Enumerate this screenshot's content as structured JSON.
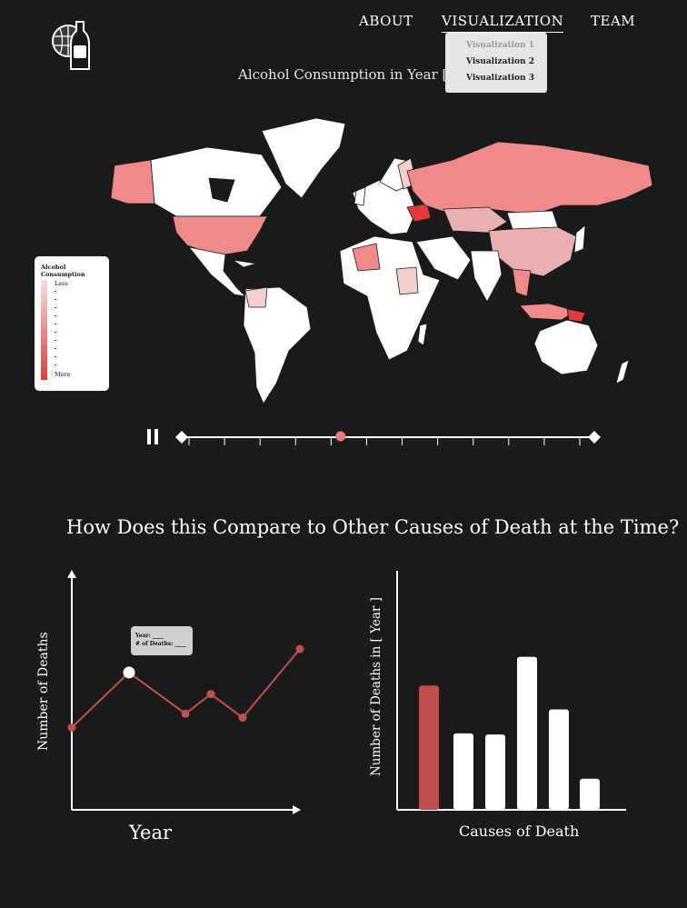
{
  "nav": {
    "about": "ABOUT",
    "visualization": "VISUALIZATION",
    "team": "TEAM",
    "dropdown": [
      "Visualization 1",
      "Visualization 2",
      "Visualization 3"
    ]
  },
  "logo": {
    "icon": "globe-bottle-logo"
  },
  "map": {
    "title": "Alcohol Consumption in Year [2019]",
    "legend": {
      "title": "Alcohol Consumption",
      "less": "Less",
      "more": "More"
    },
    "colors": {
      "land": "#ffffff",
      "low": "#f2dede",
      "mid": "#f08a8a",
      "high": "#e23a3a",
      "background": "#1b1a1a"
    }
  },
  "slider": {
    "control_icon": "pause-icon",
    "ticks": 12,
    "position": 0.385
  },
  "comparison": {
    "title": "How Does this Compare to Other Causes of Death at the Time?"
  },
  "line_chart": {
    "xlabel": "Year",
    "ylabel": "Number of Deaths",
    "tooltip": {
      "year_label": "Year: ____",
      "deaths_label": "# of Deaths: ____"
    }
  },
  "bar_chart": {
    "xlabel": "Causes of Death",
    "ylabel": "Number of Deaths in [ Year ]"
  },
  "chart_data": [
    {
      "type": "line",
      "xlabel": "Year",
      "ylabel": "Number of Deaths",
      "x": [
        1,
        2,
        3,
        4,
        5,
        6
      ],
      "values": [
        42,
        70,
        49,
        59,
        47,
        82
      ],
      "highlight_index": 1,
      "ylim": [
        0,
        120
      ],
      "color": "#c0504d"
    },
    {
      "type": "bar",
      "xlabel": "Causes of Death",
      "ylabel": "Number of Deaths in [ Year ]",
      "categories": [
        "1",
        "2",
        "3",
        "4",
        "5",
        "6"
      ],
      "values": [
        52,
        32,
        31.5,
        64,
        42,
        13
      ],
      "highlight_index": 0,
      "ylim": [
        0,
        100
      ],
      "colors": {
        "highlight": "#c0504d",
        "default": "#ffffff"
      }
    }
  ]
}
